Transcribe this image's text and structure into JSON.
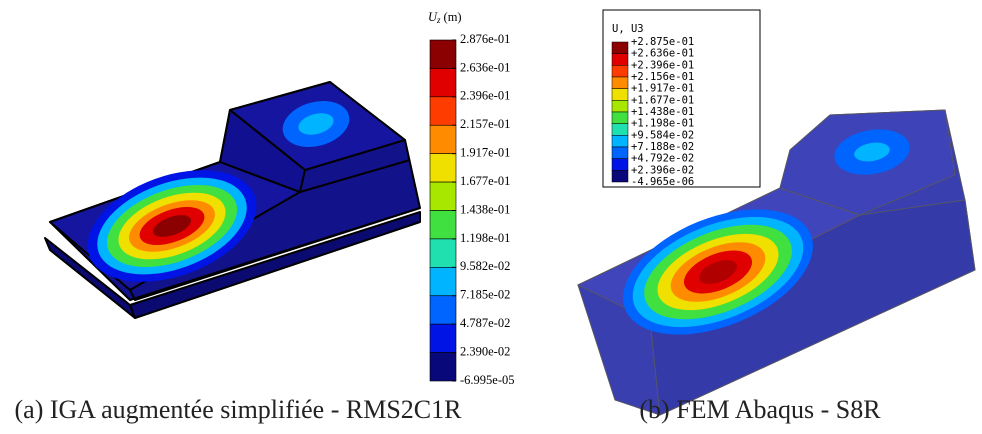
{
  "colormap": [
    "#8b0000",
    "#e00000",
    "#ff3c00",
    "#ff8c00",
    "#f0e000",
    "#a8e800",
    "#40e040",
    "#20e0b0",
    "#00b4ff",
    "#0064ff",
    "#0014e6",
    "#08087a"
  ],
  "panels": [
    {
      "caption": "(a) IGA augmentée simplifiée - RMS2C1R",
      "legend": {
        "symbol": "U",
        "subscript": "z",
        "unit": "(m)",
        "labels": [
          "2.876e-01",
          "2.636e-01",
          "2.396e-01",
          "2.157e-01",
          "1.917e-01",
          "1.677e-01",
          "1.438e-01",
          "1.198e-01",
          "9.582e-02",
          "7.185e-02",
          "4.787e-02",
          "2.390e-02",
          "-6.995e-05"
        ]
      }
    },
    {
      "caption": "(b) FEM Abaqus - S8R",
      "legend": {
        "title": "U, U3",
        "labels": [
          "+2.875e-01",
          "+2.636e-01",
          "+2.396e-01",
          "+2.156e-01",
          "+1.917e-01",
          "+1.677e-01",
          "+1.438e-01",
          "+1.198e-01",
          "+9.584e-02",
          "+7.188e-02",
          "+4.792e-02",
          "+2.396e-02",
          "-4.965e-06"
        ]
      }
    }
  ]
}
